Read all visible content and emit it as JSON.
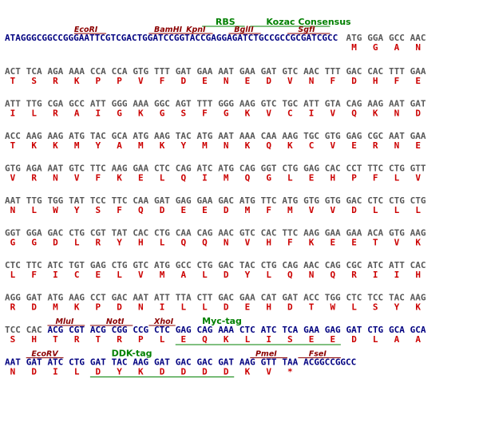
{
  "colors": {
    "dna": "#585858",
    "vector_dna": "#000080",
    "amino_acid": "#cc0000",
    "enzyme": "#8b0000",
    "feature": "#008000"
  },
  "header": {
    "sequence": "ATAGGGCGGCCGGGAATTCGTCGACTGGATCCGGTACCGAGGAGATCTGCCGCCGCGATCGCC",
    "start_codons": [
      "ATG",
      "GGA",
      "GCC",
      "AAC"
    ],
    "start_aa": [
      "M",
      "G",
      "A",
      "N"
    ]
  },
  "header_labels": [
    {
      "name": "RBS",
      "kind": "feature",
      "col": 39.5,
      "line_from": 37,
      "line_to": 45
    },
    {
      "name": "Kozac Consensus",
      "kind": "feature",
      "col": 49,
      "line_from": 46,
      "line_to": 61
    },
    {
      "name": "EcoRI",
      "kind": "enzyme",
      "col": 13,
      "line_from": 13,
      "line_to": 19
    },
    {
      "name": "BamHI",
      "kind": "enzyme",
      "col": 28,
      "line_from": 27,
      "line_to": 33
    },
    {
      "name": "KpnI",
      "kind": "enzyme",
      "col": 34,
      "line_from": 33,
      "line_to": 39
    },
    {
      "name": "BglII",
      "kind": "enzyme",
      "col": 43,
      "line_from": 42,
      "line_to": 48
    },
    {
      "name": "SgfI",
      "kind": "enzyme",
      "col": 55,
      "line_from": 53,
      "line_to": 61
    }
  ],
  "rows": [
    {
      "codons": [
        "ACT",
        "TCA",
        "AGA",
        "AAA",
        "CCA",
        "CCA",
        "GTG",
        "TTT",
        "GAT",
        "GAA",
        "AAT",
        "GAA",
        "GAT",
        "GTC",
        "AAC",
        "TTT",
        "GAC",
        "CAC",
        "TTT",
        "GAA"
      ],
      "aa": [
        "T",
        "S",
        "R",
        "K",
        "P",
        "P",
        "V",
        "F",
        "D",
        "E",
        "N",
        "E",
        "D",
        "V",
        "N",
        "F",
        "D",
        "H",
        "F",
        "E"
      ]
    },
    {
      "codons": [
        "ATT",
        "TTG",
        "CGA",
        "GCC",
        "ATT",
        "GGG",
        "AAA",
        "GGC",
        "AGT",
        "TTT",
        "GGG",
        "AAG",
        "GTC",
        "TGC",
        "ATT",
        "GTA",
        "CAG",
        "AAG",
        "AAT",
        "GAT"
      ],
      "aa": [
        "I",
        "L",
        "R",
        "A",
        "I",
        "G",
        "K",
        "G",
        "S",
        "F",
        "G",
        "K",
        "V",
        "C",
        "I",
        "V",
        "Q",
        "K",
        "N",
        "D"
      ]
    },
    {
      "codons": [
        "ACC",
        "AAG",
        "AAG",
        "ATG",
        "TAC",
        "GCA",
        "ATG",
        "AAG",
        "TAC",
        "ATG",
        "AAT",
        "AAA",
        "CAA",
        "AAG",
        "TGC",
        "GTG",
        "GAG",
        "CGC",
        "AAT",
        "GAA"
      ],
      "aa": [
        "T",
        "K",
        "K",
        "M",
        "Y",
        "A",
        "M",
        "K",
        "Y",
        "M",
        "N",
        "K",
        "Q",
        "K",
        "C",
        "V",
        "E",
        "R",
        "N",
        "E"
      ]
    },
    {
      "codons": [
        "GTG",
        "AGA",
        "AAT",
        "GTC",
        "TTC",
        "AAG",
        "GAA",
        "CTC",
        "CAG",
        "ATC",
        "ATG",
        "CAG",
        "GGT",
        "CTG",
        "GAG",
        "CAC",
        "CCT",
        "TTC",
        "CTG",
        "GTT"
      ],
      "aa": [
        "V",
        "R",
        "N",
        "V",
        "F",
        "K",
        "E",
        "L",
        "Q",
        "I",
        "M",
        "Q",
        "G",
        "L",
        "E",
        "H",
        "P",
        "F",
        "L",
        "V"
      ]
    },
    {
      "codons": [
        "AAT",
        "TTG",
        "TGG",
        "TAT",
        "TCC",
        "TTC",
        "CAA",
        "GAT",
        "GAG",
        "GAA",
        "GAC",
        "ATG",
        "TTC",
        "ATG",
        "GTG",
        "GTG",
        "GAC",
        "CTC",
        "CTG",
        "CTG"
      ],
      "aa": [
        "N",
        "L",
        "W",
        "Y",
        "S",
        "F",
        "Q",
        "D",
        "E",
        "E",
        "D",
        "M",
        "F",
        "M",
        "V",
        "V",
        "D",
        "L",
        "L",
        "L"
      ]
    },
    {
      "codons": [
        "GGT",
        "GGA",
        "GAC",
        "CTG",
        "CGT",
        "TAT",
        "CAC",
        "CTG",
        "CAA",
        "CAG",
        "AAC",
        "GTC",
        "CAC",
        "TTC",
        "AAG",
        "GAA",
        "GAA",
        "ACA",
        "GTG",
        "AAG"
      ],
      "aa": [
        "G",
        "G",
        "D",
        "L",
        "R",
        "Y",
        "H",
        "L",
        "Q",
        "Q",
        "N",
        "V",
        "H",
        "F",
        "K",
        "E",
        "E",
        "T",
        "V",
        "K"
      ]
    },
    {
      "codons": [
        "CTC",
        "TTC",
        "ATC",
        "TGT",
        "GAG",
        "CTG",
        "GTC",
        "ATG",
        "GCC",
        "CTG",
        "GAC",
        "TAC",
        "CTG",
        "CAG",
        "AAC",
        "CAG",
        "CGC",
        "ATC",
        "ATT",
        "CAC"
      ],
      "aa": [
        "L",
        "F",
        "I",
        "C",
        "E",
        "L",
        "V",
        "M",
        "A",
        "L",
        "D",
        "Y",
        "L",
        "Q",
        "N",
        "Q",
        "R",
        "I",
        "I",
        "H"
      ]
    },
    {
      "codons": [
        "AGG",
        "GAT",
        "ATG",
        "AAG",
        "CCT",
        "GAC",
        "AAT",
        "ATT",
        "TTA",
        "CTT",
        "GAC",
        "GAA",
        "CAT",
        "GAT",
        "ACC",
        "TGG",
        "CTC",
        "TCC",
        "TAC",
        "AAG"
      ],
      "aa": [
        "R",
        "D",
        "M",
        "K",
        "P",
        "D",
        "N",
        "I",
        "L",
        "L",
        "D",
        "E",
        "H",
        "D",
        "T",
        "W",
        "L",
        "S",
        "Y",
        "K"
      ]
    },
    {
      "codons": [
        "TCC",
        "CAC",
        "ACG",
        "CGT",
        "ACG",
        "CGG",
        "CCG",
        "CTC",
        "GAG",
        "CAG",
        "AAA",
        "CTC",
        "ATC",
        "TCA",
        "GAA",
        "GAG",
        "GAT",
        "CTG",
        "GCA",
        "GCA"
      ],
      "aa": [
        "S",
        "H",
        "T",
        "R",
        "T",
        "R",
        "P",
        "L",
        "E",
        "Q",
        "K",
        "L",
        "I",
        "S",
        "E",
        "E",
        "D",
        "L",
        "A",
        "A"
      ],
      "vector_from": 2,
      "labels": [
        {
          "name": "MluI",
          "kind": "enzyme",
          "col": 9.5,
          "line_from": 8,
          "line_to": 15
        },
        {
          "name": "NotI",
          "kind": "enzyme",
          "col": 19,
          "line_from": 16,
          "line_to": 24
        },
        {
          "name": "XhoI",
          "kind": "enzyme",
          "col": 28,
          "line_from": 27,
          "line_to": 32
        },
        {
          "name": "Myc-tag",
          "kind": "feature",
          "col": 37
        }
      ],
      "underline": {
        "from": 8,
        "to": 16
      }
    },
    {
      "codons": [
        "AAT",
        "GAT",
        "ATC",
        "CTG",
        "GAT",
        "TAC",
        "AAG",
        "GAT",
        "GAC",
        "GAC",
        "GAT",
        "AAG",
        "GTT",
        "TAA",
        "ACGGCCGGCC"
      ],
      "aa": [
        "N",
        "D",
        "I",
        "L",
        "D",
        "Y",
        "K",
        "D",
        "D",
        "D",
        "D",
        "K",
        "V",
        "*",
        ""
      ],
      "vector_from": 0,
      "labels": [
        {
          "name": "EcoRV",
          "kind": "enzyme",
          "col": 5,
          "line_from": 4,
          "line_to": 11
        },
        {
          "name": "DDK-tag",
          "kind": "feature",
          "col": 20
        },
        {
          "name": "PmeI",
          "kind": "enzyme",
          "col": 47,
          "line_from": 46,
          "line_to": 53
        },
        {
          "name": "FseI",
          "kind": "enzyme",
          "col": 57,
          "line_from": 55,
          "line_to": 63
        }
      ],
      "underline": {
        "from": 4,
        "to": 11
      }
    }
  ]
}
